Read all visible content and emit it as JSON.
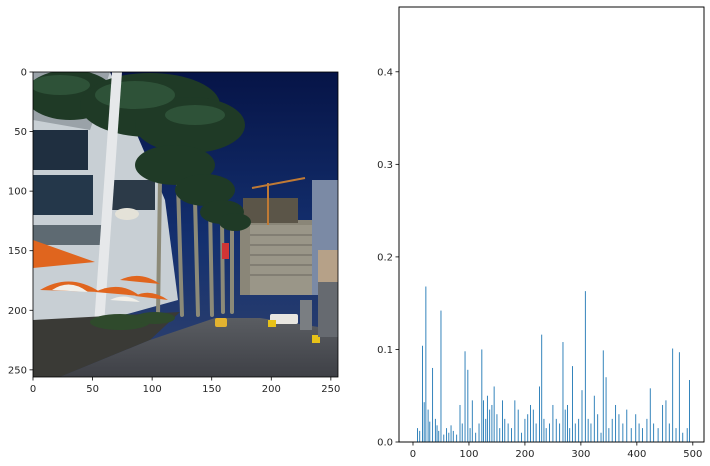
{
  "chart_data": [
    {
      "type": "image",
      "title": "",
      "xlabel": "",
      "ylabel": "",
      "xlim": [
        0,
        256
      ],
      "ylim": [
        256,
        0
      ],
      "x_ticks": [
        "0",
        "50",
        "100",
        "150",
        "200",
        "250"
      ],
      "y_ticks": [
        "0",
        "50",
        "100",
        "150",
        "200",
        "250"
      ],
      "scene": "photograph of a street lined with palm trees, orange umbrellas and high-rise buildings under a dark blue sky",
      "colors": {
        "sky": "#0c1e5a",
        "palms": "#203a28",
        "street": "#4a4d55",
        "umbrella": "#e0651e",
        "building": "#8a8678"
      }
    },
    {
      "type": "bar",
      "title": "",
      "xlabel": "",
      "ylabel": "",
      "xlim": [
        -25,
        520
      ],
      "ylim": [
        0,
        0.47
      ],
      "x_ticks": [
        "0",
        "100",
        "200",
        "300",
        "400",
        "500"
      ],
      "y_ticks": [
        "0.0",
        "0.1",
        "0.2",
        "0.3",
        "0.4"
      ],
      "color": "#1f77b4",
      "x": [
        8,
        12,
        17,
        20,
        23,
        27,
        30,
        35,
        40,
        43,
        46,
        50,
        55,
        60,
        64,
        68,
        72,
        78,
        84,
        88,
        93,
        98,
        102,
        106,
        112,
        118,
        123,
        126,
        130,
        133,
        137,
        141,
        145,
        150,
        155,
        160,
        164,
        170,
        176,
        182,
        188,
        194,
        200,
        205,
        210,
        215,
        220,
        226,
        230,
        234,
        238,
        244,
        250,
        256,
        262,
        268,
        272,
        276,
        280,
        285,
        290,
        296,
        302,
        308,
        313,
        318,
        324,
        330,
        336,
        340,
        345,
        350,
        356,
        362,
        368,
        375,
        382,
        390,
        398,
        404,
        410,
        418,
        424,
        430,
        438,
        446,
        452,
        458,
        464,
        470,
        476,
        482,
        490,
        494
      ],
      "values": [
        0.015,
        0.012,
        0.104,
        0.043,
        0.168,
        0.035,
        0.022,
        0.08,
        0.025,
        0.018,
        0.012,
        0.142,
        0.008,
        0.015,
        0.01,
        0.018,
        0.012,
        0.008,
        0.04,
        0.02,
        0.098,
        0.078,
        0.015,
        0.045,
        0.01,
        0.02,
        0.1,
        0.045,
        0.025,
        0.05,
        0.035,
        0.04,
        0.06,
        0.03,
        0.015,
        0.045,
        0.025,
        0.02,
        0.015,
        0.045,
        0.035,
        0.01,
        0.025,
        0.03,
        0.04,
        0.035,
        0.02,
        0.06,
        0.116,
        0.025,
        0.015,
        0.02,
        0.04,
        0.025,
        0.02,
        0.108,
        0.035,
        0.04,
        0.015,
        0.082,
        0.02,
        0.025,
        0.056,
        0.163,
        0.025,
        0.02,
        0.05,
        0.03,
        0.01,
        0.099,
        0.07,
        0.015,
        0.025,
        0.04,
        0.03,
        0.02,
        0.035,
        0.015,
        0.03,
        0.02,
        0.015,
        0.025,
        0.058,
        0.02,
        0.015,
        0.04,
        0.045,
        0.02,
        0.101,
        0.015,
        0.097,
        0.01,
        0.015,
        0.067
      ]
    }
  ]
}
